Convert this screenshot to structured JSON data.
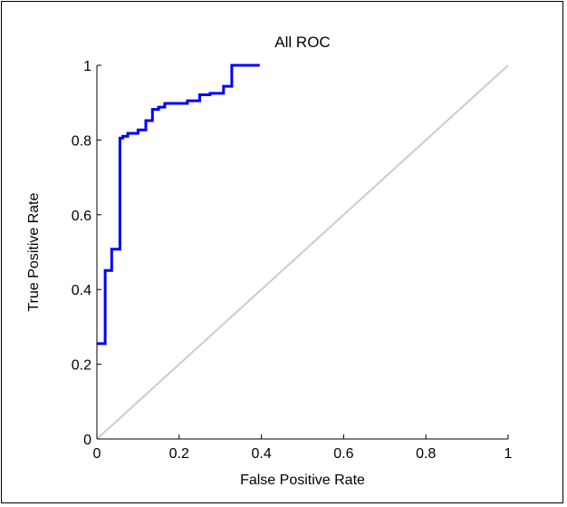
{
  "chart_data": {
    "type": "line",
    "title": "All ROC",
    "xlabel": "False Positive Rate",
    "ylabel": "True Positive Rate",
    "xlim": [
      0,
      1
    ],
    "ylim": [
      0,
      1
    ],
    "x_ticks": [
      "0",
      "0.2",
      "0.4",
      "0.6",
      "0.8",
      "1"
    ],
    "y_ticks": [
      "0",
      "0.2",
      "0.4",
      "0.6",
      "0.8",
      "1"
    ],
    "grid": false,
    "legend": "none",
    "series": [
      {
        "color": "#0000ff",
        "x": [
          0.0,
          0.0,
          0.02,
          0.02,
          0.036,
          0.036,
          0.056,
          0.056,
          0.063,
          0.063,
          0.075,
          0.075,
          0.1,
          0.1,
          0.119,
          0.119,
          0.135,
          0.135,
          0.15,
          0.15,
          0.165,
          0.165,
          0.22,
          0.22,
          0.25,
          0.25,
          0.275,
          0.275,
          0.308,
          0.308,
          0.328,
          0.328,
          0.396
        ],
        "y": [
          0.255,
          0.255,
          0.255,
          0.451,
          0.451,
          0.508,
          0.508,
          0.805,
          0.805,
          0.81,
          0.81,
          0.818,
          0.818,
          0.827,
          0.827,
          0.852,
          0.852,
          0.882,
          0.882,
          0.888,
          0.888,
          0.898,
          0.898,
          0.905,
          0.905,
          0.921,
          0.921,
          0.925,
          0.925,
          0.944,
          0.944,
          1.0,
          1.0
        ]
      },
      {
        "color": "#cccccc",
        "x": [
          0,
          1
        ],
        "y": [
          0,
          1
        ]
      }
    ]
  }
}
